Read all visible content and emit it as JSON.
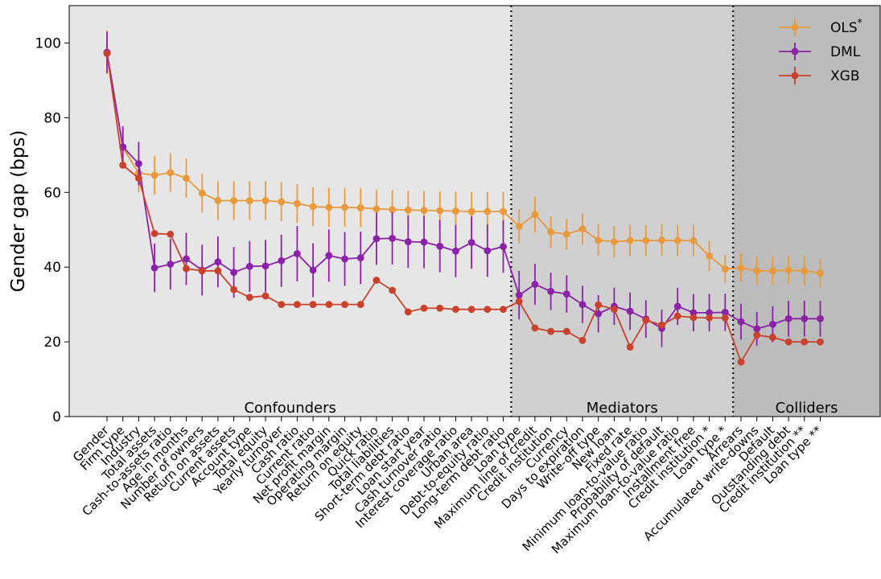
{
  "chart_data": {
    "type": "line",
    "title": "",
    "xlabel": "",
    "ylabel": "Gender gap (bps)",
    "ylim": [
      0,
      110
    ],
    "yticks": [
      0,
      20,
      40,
      60,
      80,
      100
    ],
    "grid": false,
    "legend_position": "top-right",
    "categories": [
      "Gender",
      "Firm type",
      "Industry",
      "Total assets",
      "Cash-to-assets ratio",
      "Age in months",
      "Number of owners",
      "Return on assets",
      "Current assets",
      "Account type",
      "Total equity",
      "Yearly turnover",
      "Cash ratio",
      "Current ratio",
      "Net profit margin",
      "Operating margin",
      "Return on equity",
      "Quick ratio",
      "Total liabilities",
      "Short-term debt ratio",
      "Loan start year",
      "Cash turnover ratio",
      "Interest coverage ratio",
      "Urban area",
      "Debt-to-equity ratio",
      "Long-term debt ratio",
      "Loan type",
      "Maximum line of credit",
      "Credit institution",
      "Currency",
      "Days to expiration",
      "Write-off type",
      "New loan",
      "Fixed rate",
      "Minimum loan-to-value ratio",
      "Probability of default",
      "Maximum loan-to-value ratio",
      "Installment free",
      "Credit institution *",
      "Loan type *",
      "Arrears",
      "Accumulated write-downs",
      "Default",
      "Outstanding debt",
      "Credit institution **",
      "Loan type **"
    ],
    "regions": [
      {
        "label": "Confounders",
        "start_index": 0,
        "end_index": 25,
        "shade": "#e6e6e6"
      },
      {
        "label": "Mediators",
        "start_index": 26,
        "end_index": 39,
        "shade": "#d0d0d0"
      },
      {
        "label": "Colliders",
        "start_index": 40,
        "end_index": 45,
        "shade": "#bcbcbc"
      }
    ],
    "series": [
      {
        "name": "OLS",
        "name_superscript": "*",
        "color": "#e89a3c",
        "values": [
          97.5,
          72.0,
          65.2,
          64.6,
          65.3,
          63.8,
          59.8,
          57.8,
          57.8,
          57.8,
          57.8,
          57.5,
          57.0,
          56.2,
          56.0,
          56.0,
          55.9,
          55.6,
          55.4,
          55.3,
          55.2,
          55.1,
          55.0,
          54.9,
          54.9,
          54.9,
          50.9,
          54.1,
          49.4,
          48.8,
          50.2,
          47.2,
          46.8,
          47.1,
          47.1,
          47.2,
          47.1,
          47.1,
          43.0,
          39.5,
          39.8,
          39.0,
          39.0,
          39.2,
          39.0,
          38.4
        ],
        "errors": [
          5.8,
          5.5,
          5.2,
          5.2,
          5.2,
          5.2,
          5.2,
          5.2,
          5.2,
          5.2,
          5.2,
          5.2,
          5.2,
          5.2,
          5.2,
          5.2,
          5.2,
          5.2,
          5.2,
          5.2,
          5.2,
          5.2,
          5.2,
          5.2,
          5.2,
          5.2,
          4.5,
          4.8,
          4.2,
          4.2,
          4.2,
          4.2,
          4.2,
          4.2,
          4.2,
          4.2,
          4.2,
          4.2,
          4.0,
          3.8,
          3.8,
          3.8,
          3.8,
          3.8,
          3.8,
          3.8
        ]
      },
      {
        "name": "DML",
        "name_superscript": "",
        "color": "#8b22a7",
        "values": [
          97.5,
          72.2,
          67.7,
          39.8,
          40.8,
          42.2,
          39.2,
          41.4,
          38.6,
          40.2,
          40.3,
          41.7,
          43.6,
          39.2,
          43.1,
          42.2,
          42.5,
          47.6,
          47.7,
          46.8,
          46.7,
          45.6,
          44.3,
          46.6,
          44.4,
          45.5,
          32.5,
          35.4,
          33.5,
          32.8,
          30.0,
          27.5,
          29.5,
          28.2,
          26.1,
          23.6,
          29.5,
          27.8,
          27.8,
          27.9,
          25.4,
          23.5,
          24.7,
          26.2,
          26.2,
          26.2
        ],
        "errors": [
          5.5,
          5.5,
          5.8,
          6.5,
          6.8,
          7.0,
          6.8,
          6.8,
          6.8,
          6.8,
          7.0,
          7.0,
          7.4,
          7.2,
          7.0,
          7.2,
          7.0,
          7.0,
          7.0,
          7.0,
          7.0,
          7.0,
          7.0,
          7.0,
          7.0,
          7.0,
          6.5,
          5.5,
          5.0,
          5.0,
          5.0,
          5.0,
          5.0,
          5.0,
          5.0,
          5.0,
          5.0,
          5.0,
          5.0,
          5.0,
          4.8,
          4.5,
          4.8,
          4.8,
          4.8,
          4.8
        ]
      },
      {
        "name": "XGB",
        "name_superscript": "",
        "color": "#c9422d",
        "values": [
          97.2,
          67.3,
          63.8,
          49.0,
          48.8,
          39.6,
          39.0,
          39.0,
          34.0,
          31.9,
          32.3,
          30.0,
          30.0,
          30.0,
          30.0,
          30.0,
          30.0,
          36.5,
          33.8,
          28.0,
          29.0,
          29.0,
          28.7,
          28.7,
          28.7,
          28.7,
          30.8,
          23.7,
          22.8,
          22.8,
          20.4,
          29.9,
          28.7,
          18.6,
          25.8,
          24.5,
          26.9,
          26.5,
          26.4,
          26.4,
          14.6,
          21.8,
          21.2,
          20.0,
          20.0,
          20.0
        ]
      }
    ]
  }
}
